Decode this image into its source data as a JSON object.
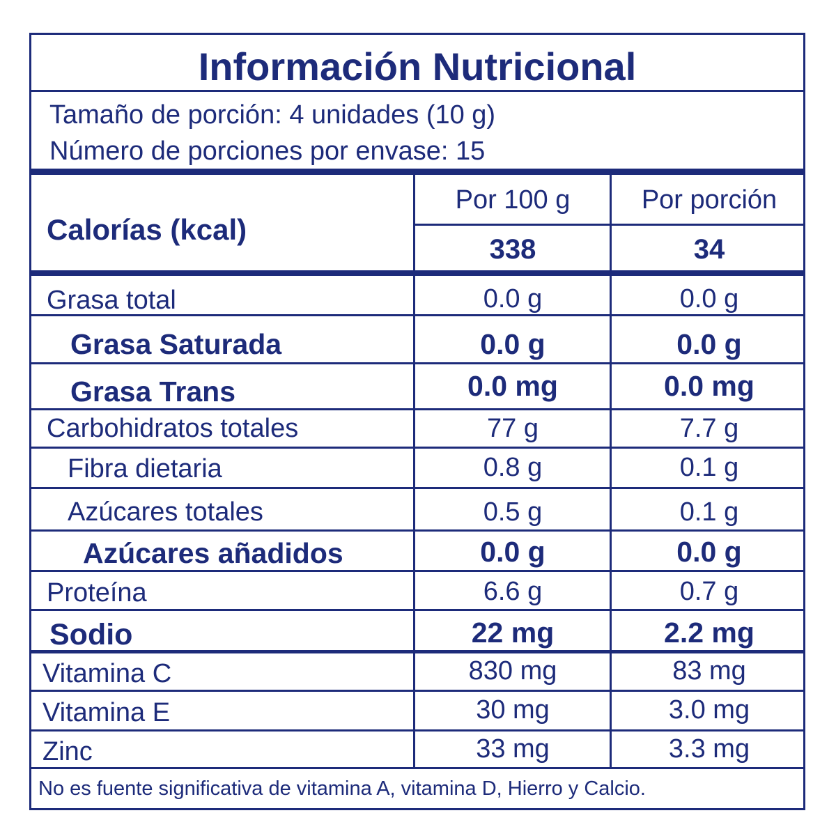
{
  "title": "Información Nutricional",
  "serving_size": "Tamaño de porción: 4 unidades (10 g)",
  "servings_per_container": "Número de porciones por envase: 15",
  "columns": {
    "per_100g": "Por 100 g",
    "per_serving": "Por porción"
  },
  "calories": {
    "label": "Calorías (kcal)",
    "per_100g": "338",
    "per_serving": "34"
  },
  "nutrients": [
    {
      "name": "Grasa total",
      "per_100g": "0.0 g",
      "per_serving": "0.0 g"
    },
    {
      "name": "Grasa Saturada",
      "per_100g": "0.0 g",
      "per_serving": "0.0 g"
    },
    {
      "name": "Grasa Trans",
      "per_100g": "0.0 mg",
      "per_serving": "0.0 mg"
    },
    {
      "name": "Carbohidratos totales",
      "per_100g": "77 g",
      "per_serving": "7.7 g"
    },
    {
      "name": "Fibra dietaria",
      "per_100g": "0.8 g",
      "per_serving": "0.1 g"
    },
    {
      "name": "Azúcares totales",
      "per_100g": "0.5 g",
      "per_serving": "0.1 g"
    },
    {
      "name": "Azúcares añadidos",
      "per_100g": "0.0 g",
      "per_serving": "0.0 g"
    },
    {
      "name": "Proteína",
      "per_100g": "6.6 g",
      "per_serving": "0.7 g"
    },
    {
      "name": "Sodio",
      "per_100g": "22 mg",
      "per_serving": "2.2 mg"
    },
    {
      "name": "Vitamina C",
      "per_100g": "830 mg",
      "per_serving": "83 mg"
    },
    {
      "name": "Vitamina E",
      "per_100g": "30 mg",
      "per_serving": "3.0 mg"
    },
    {
      "name": "Zinc",
      "per_100g": "33 mg",
      "per_serving": "3.3 mg"
    }
  ],
  "footnote": "No es fuente significativa de vitamina A, vitamina D, Hierro y Calcio.",
  "colors": {
    "ink": "#1d2b7a",
    "background": "#ffffff"
  }
}
